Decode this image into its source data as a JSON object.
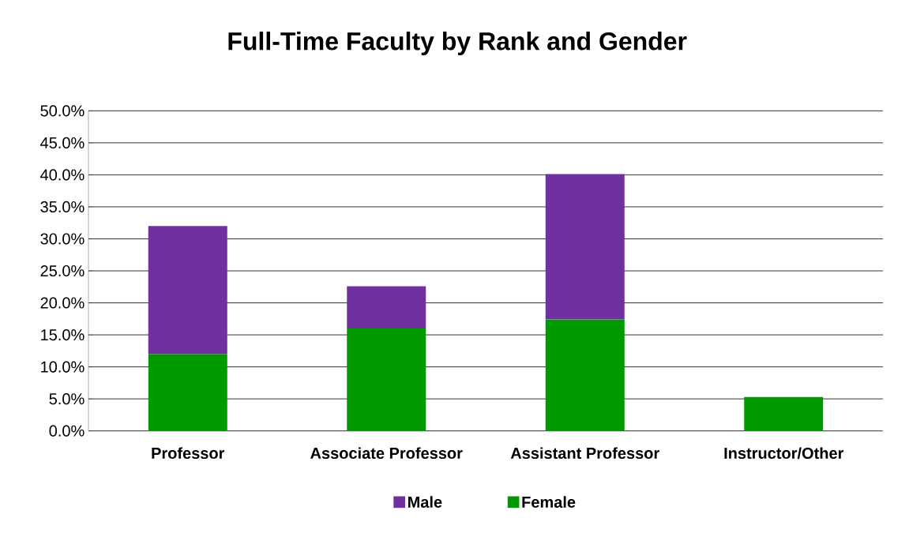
{
  "chart_data": {
    "type": "bar",
    "stacked": true,
    "title": "Full-Time Faculty by Rank and Gender",
    "categories": [
      "Professor",
      "Associate Professor",
      "Assistant Professor",
      "Instructor/Other"
    ],
    "series": [
      {
        "name": "Female",
        "color": "#009900",
        "values": [
          12.0,
          16.0,
          17.4,
          5.3
        ]
      },
      {
        "name": "Male",
        "color": "#7030a0",
        "values": [
          20.0,
          6.6,
          22.7,
          0
        ]
      }
    ],
    "ylim": [
      0,
      50
    ],
    "yticks": [
      {
        "value": 0,
        "label": "0.0%"
      },
      {
        "value": 5,
        "label": "5.0%"
      },
      {
        "value": 10,
        "label": "10.0%"
      },
      {
        "value": 15,
        "label": "15.0%"
      },
      {
        "value": 20,
        "label": "20.0%"
      },
      {
        "value": 25,
        "label": "25.0%"
      },
      {
        "value": 30,
        "label": "30.0%"
      },
      {
        "value": 35,
        "label": "35.0%"
      },
      {
        "value": 40,
        "label": "40.0%"
      },
      {
        "value": 45,
        "label": "45.0%"
      },
      {
        "value": 50,
        "label": "50.0%"
      }
    ],
    "grid": "y",
    "legend": "bottom"
  }
}
